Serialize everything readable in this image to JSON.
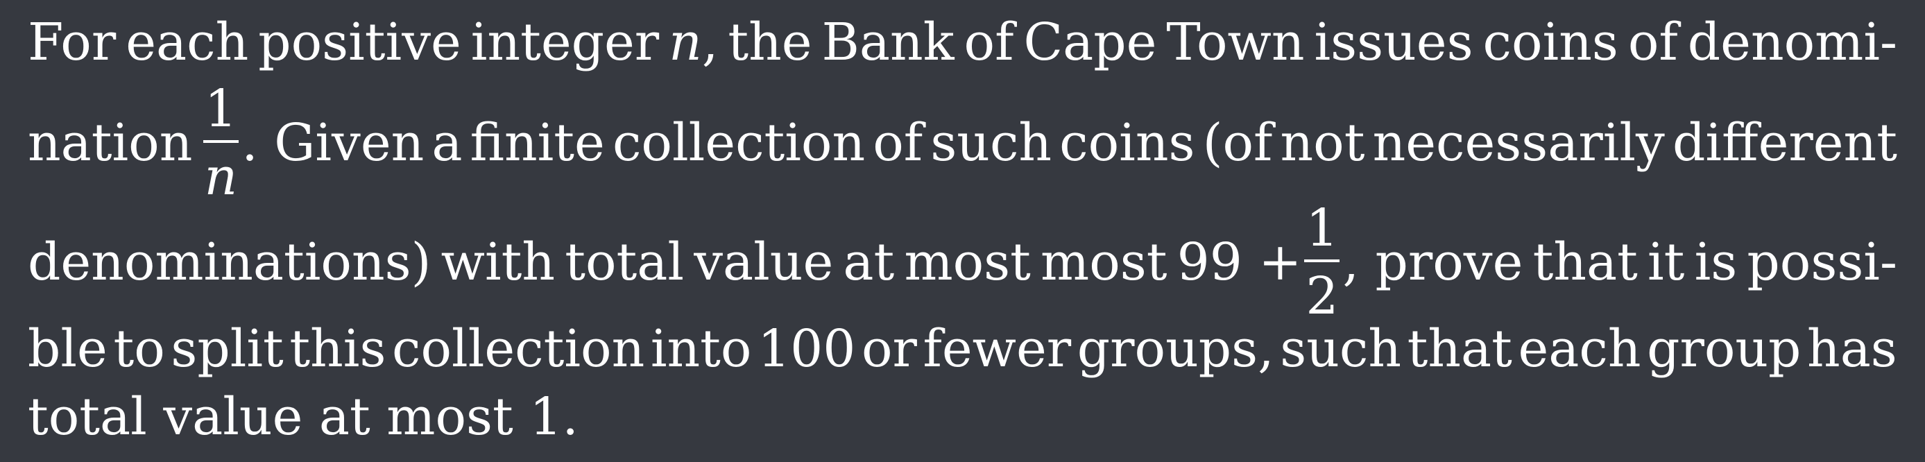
{
  "problem": {
    "l1_a": "For",
    "l1_b": "each",
    "l1_c": "positive",
    "l1_d": "integer",
    "l1_var": "n",
    "l1_comma": ",",
    "l1_e": "the",
    "l1_f": "Bank",
    "l1_g": "of",
    "l1_h": "Cape",
    "l1_i": "Town",
    "l1_j": "issues",
    "l1_k": "coins",
    "l1_l": "of",
    "l1_m": "denomi-",
    "l2_a": "nation",
    "l2_frac_num": "1",
    "l2_frac_den": "n",
    "l2_b": ". Given",
    "l2_c": "a",
    "l2_d": "finite",
    "l2_e": "collection",
    "l2_f": "of",
    "l2_g": "such",
    "l2_h": "coins",
    "l2_i": "(of",
    "l2_j": "not",
    "l2_k": "necessarily",
    "l2_l": "different",
    "l3_a": "denominations)",
    "l3_b": "with",
    "l3_c": "total",
    "l3_d": "value",
    "l3_e": "at",
    "l3_f": "most",
    "l3_g": "most",
    "l3_h": "99 +",
    "l3_frac_num": "1",
    "l3_frac_den": "2",
    "l3_i": ", prove",
    "l3_j": "that",
    "l3_k": "it",
    "l3_l": "is",
    "l3_m": "possi-",
    "l4_a": "ble",
    "l4_b": "to",
    "l4_c": "split",
    "l4_d": "this",
    "l4_e": "collection",
    "l4_f": "into",
    "l4_g": "100",
    "l4_h": "or",
    "l4_i": "fewer",
    "l4_j": "groups,",
    "l4_k": "such",
    "l4_l": "that",
    "l4_m": "each",
    "l4_n": "group",
    "l4_o": "has",
    "l5": "total value at most 1."
  }
}
